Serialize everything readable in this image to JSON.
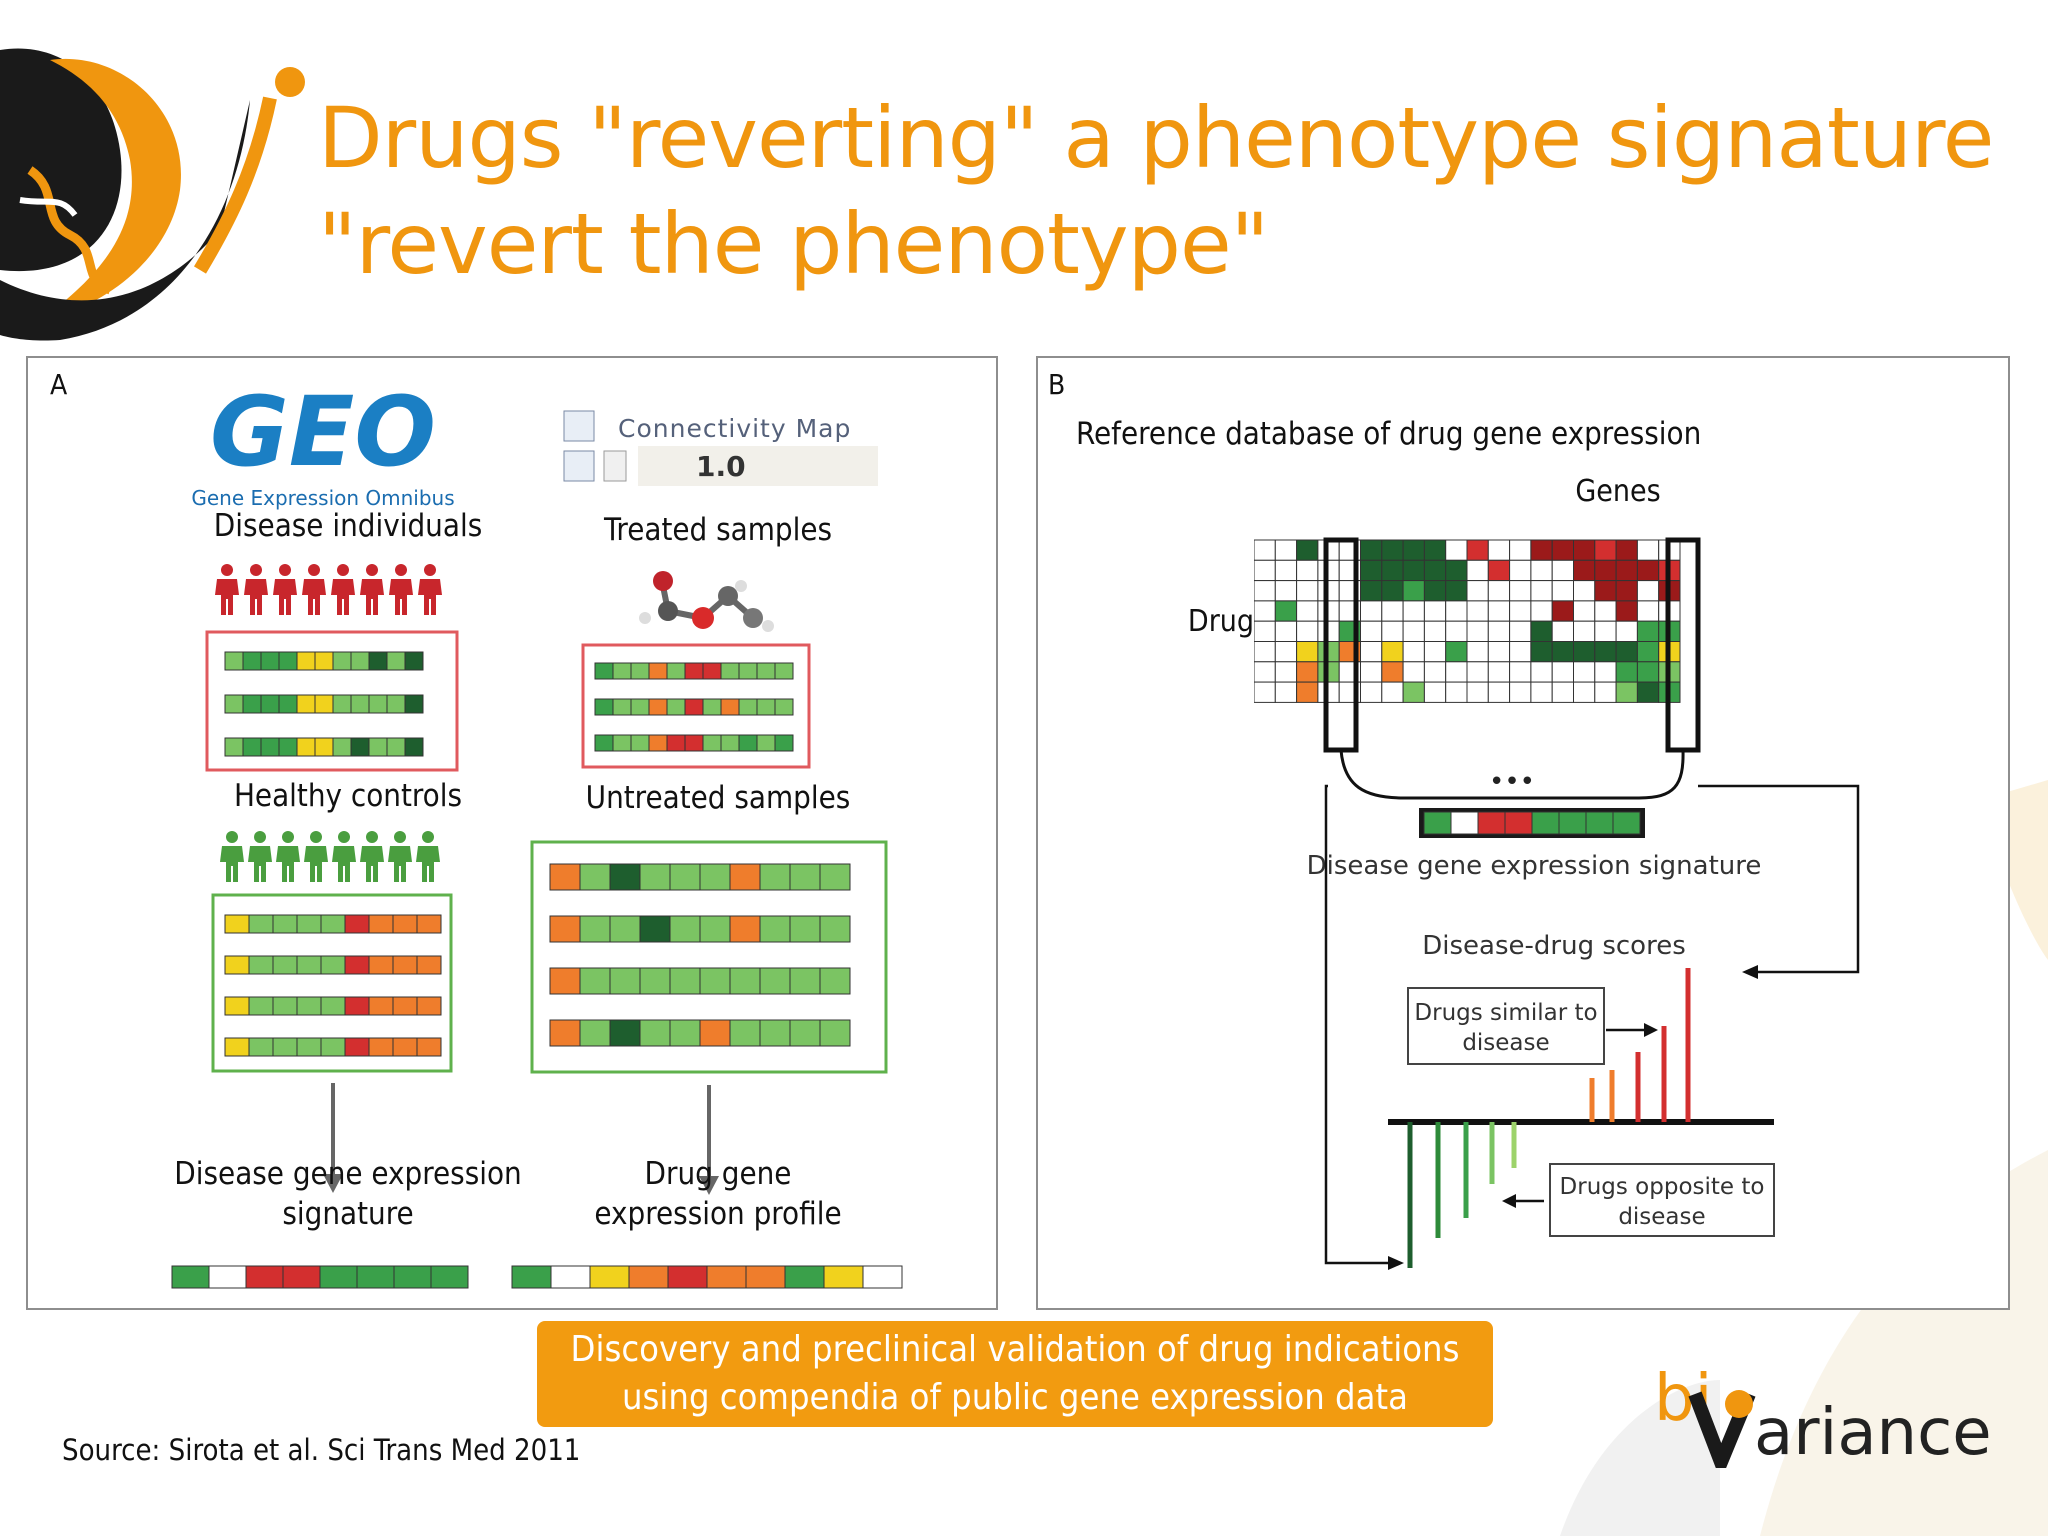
{
  "slide": {
    "title_line1": "Drugs \"reverting\" a phenotype signature",
    "title_line2": "\"revert the phenotype\"",
    "source": "Source:  Sirota et al. Sci Trans Med 2011",
    "banner": "Discovery and preclinical validation of drug indications using compendia of public gene expression data",
    "brand_prefix": "bi",
    "brand_suffix": "ariance",
    "colors": {
      "accent": "#f29b10",
      "title": "#f0960f",
      "panel_border": "#8e8e8e"
    }
  },
  "panel_a": {
    "label": "A",
    "geo_logo": "GEO",
    "geo_subtitle": "Gene Expression Omnibus",
    "cmap_logo": "Connectivity Map",
    "cmap_version": "1.0",
    "disease_individuals": "Disease individuals",
    "healthy_controls": "Healthy controls",
    "treated_samples": "Treated samples",
    "untreated_samples": "Untreated samples",
    "disease_signature_line1": "Disease gene expression",
    "disease_signature_line2": "signature",
    "drug_profile_line1": "Drug gene",
    "drug_profile_line2": "expression profile"
  },
  "panel_b": {
    "label": "B",
    "reference_db": "Reference database of drug gene expression",
    "genes": "Genes",
    "drugs": "Drugs",
    "ellipsis": "•••",
    "disease_signature": "Disease gene expression signature",
    "scores": "Disease-drug scores",
    "similar_line1": "Drugs similar to",
    "similar_line2": "disease",
    "opposite_line1": "Drugs opposite to",
    "opposite_line2": "disease"
  }
}
